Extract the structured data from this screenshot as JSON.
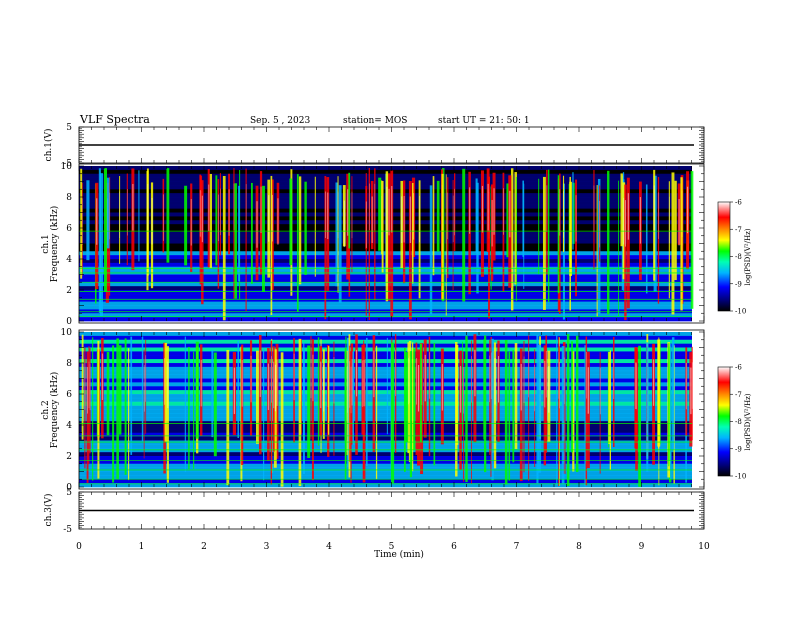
{
  "header": {
    "title": "VLF Spectra",
    "date": "Sep. 5 , 2023",
    "station": "station= MOS",
    "start": "start UT = 21: 50: 1"
  },
  "chart_data": [
    {
      "type": "line",
      "panel": "ch1-waveform",
      "ylabel": "ch.1(V)",
      "ylim": [
        -5,
        5
      ],
      "yticks": [
        "5",
        "-5"
      ],
      "xlim": [
        0,
        10
      ],
      "series": [
        {
          "x": [
            0,
            9.84
          ],
          "y": [
            0,
            0
          ]
        }
      ]
    },
    {
      "type": "heatmap",
      "panel": "ch1-spectrogram",
      "ylabel_lines": [
        "ch.1",
        "Frequency (kHz)"
      ],
      "ylim": [
        0,
        10
      ],
      "yticks": [
        "0",
        "2",
        "4",
        "6",
        "8",
        "10"
      ],
      "xlim": [
        0,
        10
      ],
      "colorbar": {
        "label": "log(PSD)(V²/Hz)",
        "range": [
          -10,
          -6
        ],
        "ticks": [
          "-6",
          "-7",
          "-8",
          "-9",
          "-10"
        ]
      },
      "colormap": [
        "#000000",
        "#00007a",
        "#0000ff",
        "#00b4ff",
        "#00ffb4",
        "#00ff00",
        "#ffff00",
        "#ff8800",
        "#ff0000",
        "#ffffff"
      ]
    },
    {
      "type": "heatmap",
      "panel": "ch2-spectrogram",
      "ylabel_lines": [
        "ch.2",
        "Frequency (kHz)"
      ],
      "ylim": [
        0,
        10
      ],
      "yticks": [
        "0",
        "2",
        "4",
        "6",
        "8",
        "10"
      ],
      "xlim": [
        0,
        10
      ],
      "colorbar": {
        "label": "log(PSD)(V²/Hz)",
        "range": [
          -10,
          -6
        ],
        "ticks": [
          "-6",
          "-7",
          "-8",
          "-9",
          "-10"
        ]
      },
      "colormap": [
        "#000000",
        "#00007a",
        "#0000ff",
        "#00b4ff",
        "#00ffb4",
        "#00ff00",
        "#ffff00",
        "#ff8800",
        "#ff0000",
        "#ffffff"
      ]
    },
    {
      "type": "line",
      "panel": "ch3-waveform",
      "ylabel": "ch.3(V)",
      "ylim": [
        -5,
        5
      ],
      "yticks": [
        "5",
        "-5"
      ],
      "xlim": [
        0,
        10
      ],
      "xlabel": "Time (min)",
      "xticks": [
        "0",
        "1",
        "2",
        "3",
        "4",
        "5",
        "6",
        "7",
        "8",
        "9",
        "10"
      ],
      "series": [
        {
          "x": [
            0,
            9.84
          ],
          "y": [
            0,
            0
          ]
        }
      ]
    }
  ]
}
